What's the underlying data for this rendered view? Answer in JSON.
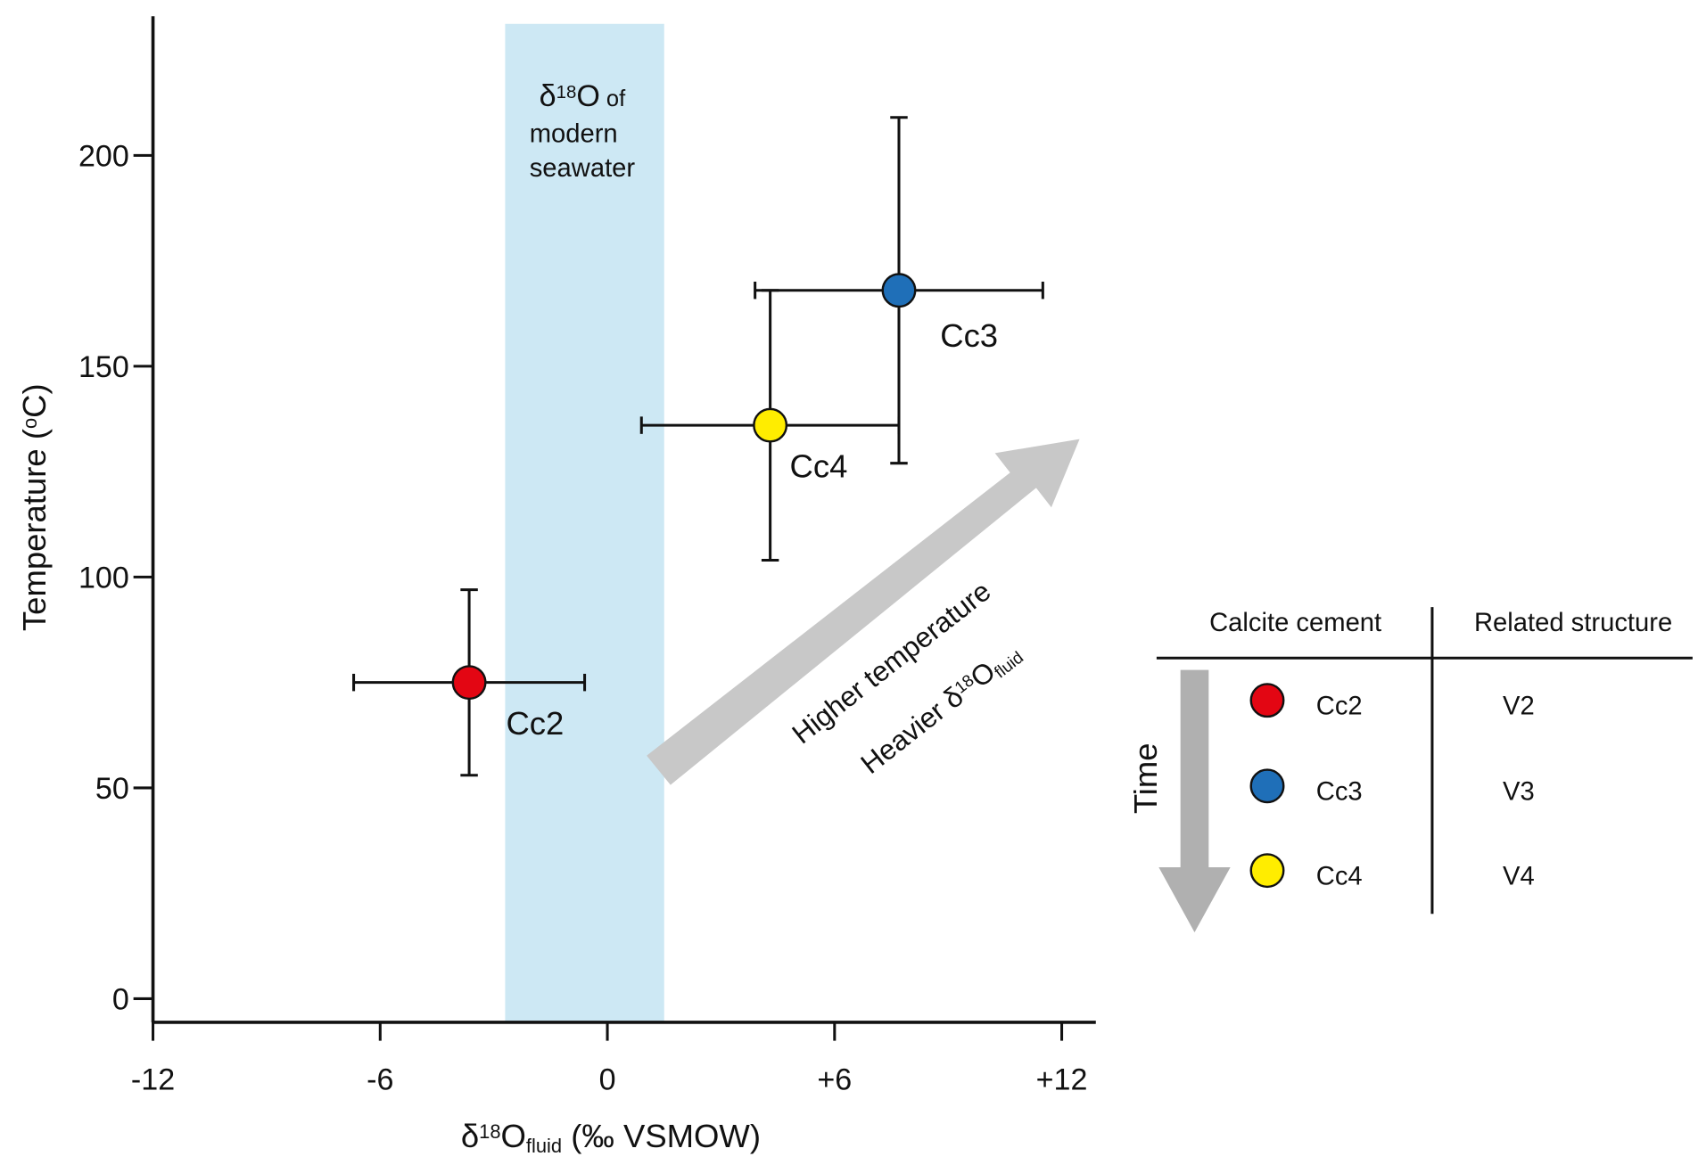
{
  "chart_data": {
    "type": "scatter",
    "xlabel": [
      {
        "text": "δ"
      },
      {
        "text": "18",
        "style": "sup"
      },
      {
        "text": "O"
      },
      {
        "text": "fluid",
        "style": "sub"
      },
      {
        "text": " (‰ VSMOW)"
      }
    ],
    "ylabel": [
      {
        "text": "Temperature ("
      },
      {
        "text": "o",
        "style": "sup"
      },
      {
        "text": "C)"
      }
    ],
    "xlim": [
      -12,
      12.9
    ],
    "ylim": [
      -5.6,
      233
    ],
    "xticks": [
      -12,
      -6,
      0,
      {
        "value": 6,
        "label": "+6"
      },
      {
        "value": 12,
        "label": "+12"
      }
    ],
    "yticks": [
      0,
      50,
      100,
      150,
      200
    ],
    "band": [
      -2.7,
      1.5
    ],
    "band_color": "#cde8f4",
    "band_label": [
      [
        {
          "text": "δ"
        },
        {
          "text": "18",
          "style": "sup"
        },
        {
          "text": "O"
        },
        {
          "text": " of",
          "style": "small"
        }
      ],
      [
        {
          "text": "modern"
        }
      ],
      [
        {
          "text": "seawater"
        }
      ]
    ],
    "arrow_label": [
      [
        {
          "text": "Higher temperature"
        }
      ],
      [
        {
          "text": "Heavier δ"
        },
        {
          "text": "18",
          "style": "sup"
        },
        {
          "text": "O"
        },
        {
          "text": "fluid",
          "style": "sub"
        }
      ]
    ],
    "series": [
      {
        "name": "Cc2",
        "color": "#e30613",
        "x": [
          -3.65
        ],
        "values": [
          75
        ],
        "xerr": [
          3.05
        ],
        "yerr": [
          22
        ]
      },
      {
        "name": "Cc3",
        "color": "#1f6fb8",
        "x": [
          7.7
        ],
        "values": [
          168
        ],
        "xerr": [
          3.8
        ],
        "yerr": [
          41
        ]
      },
      {
        "name": "Cc4",
        "color": "#ffed00",
        "x": [
          4.3
        ],
        "values": [
          136
        ],
        "xerr": [
          3.4
        ],
        "yerr": [
          32
        ]
      }
    ],
    "table": {
      "columns": [
        "Calcite cement",
        "Related structure"
      ],
      "rows": [
        {
          "cement": "Cc2",
          "structure": "V2"
        },
        {
          "cement": "Cc3",
          "structure": "V3"
        },
        {
          "cement": "Cc4",
          "structure": "V4"
        }
      ],
      "time_label": "Time"
    }
  }
}
